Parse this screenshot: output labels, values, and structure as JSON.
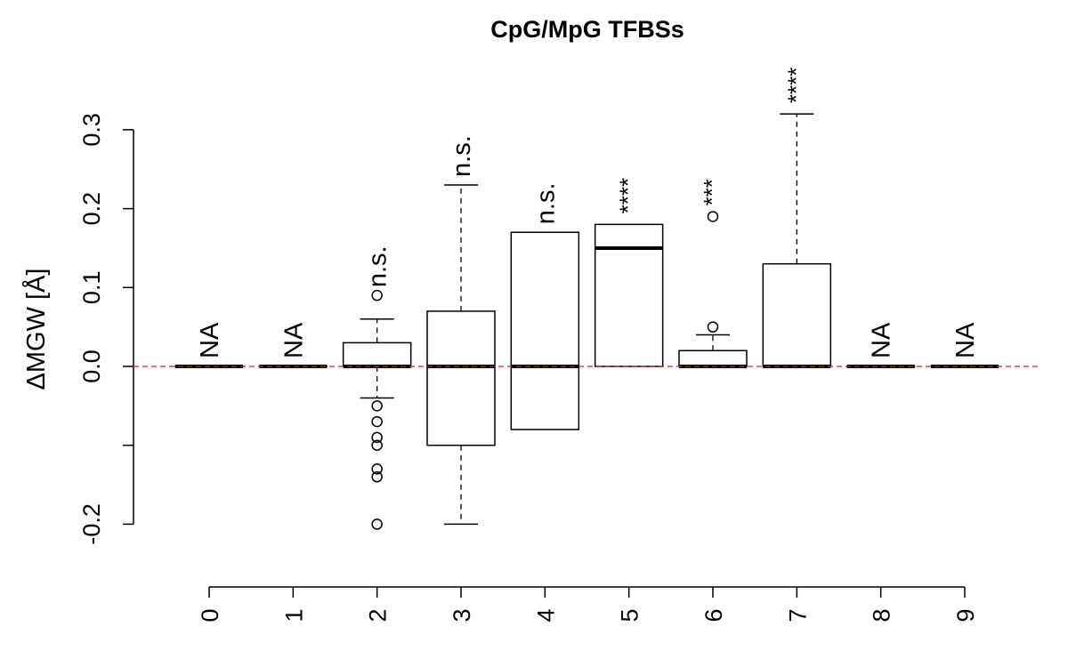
{
  "chart_data": {
    "type": "boxplot",
    "title": "CpG/MpG TFBSs",
    "xlabel": "",
    "ylabel": "ΔMGW [Å]",
    "ylim": [
      -0.2,
      0.3
    ],
    "yticks": [
      -0.2,
      -0.1,
      0.0,
      0.1,
      0.2,
      0.3
    ],
    "ytick_labels": [
      "-0.2",
      "",
      "0.0",
      "0.1",
      "0.2",
      "0.3"
    ],
    "categories": [
      "0",
      "1",
      "2",
      "3",
      "4",
      "5",
      "6",
      "7",
      "8",
      "9"
    ],
    "reference_line": {
      "y": 0,
      "color": "#e31a1c",
      "style": "dashed"
    },
    "boxes": [
      {
        "q1": 0,
        "median": 0,
        "q3": 0,
        "whisker_low": 0,
        "whisker_high": 0,
        "outliers": [],
        "annotation": "NA"
      },
      {
        "q1": 0,
        "median": 0,
        "q3": 0,
        "whisker_low": 0,
        "whisker_high": 0,
        "outliers": [],
        "annotation": "NA"
      },
      {
        "q1": 0,
        "median": 0,
        "q3": 0.03,
        "whisker_low": -0.04,
        "whisker_high": 0.06,
        "outliers": [
          0.09,
          -0.05,
          -0.07,
          -0.09,
          -0.1,
          -0.13,
          -0.14,
          -0.2
        ],
        "annotation": "n.s."
      },
      {
        "q1": -0.1,
        "median": 0,
        "q3": 0.07,
        "whisker_low": -0.2,
        "whisker_high": 0.23,
        "outliers": [],
        "annotation": "n.s."
      },
      {
        "q1": -0.08,
        "median": 0,
        "q3": 0.17,
        "whisker_low": -0.08,
        "whisker_high": 0.17,
        "outliers": [],
        "annotation": "n.s."
      },
      {
        "q1": 0,
        "median": 0.15,
        "q3": 0.18,
        "whisker_low": 0,
        "whisker_high": 0.18,
        "outliers": [],
        "annotation": "****"
      },
      {
        "q1": 0,
        "median": 0,
        "q3": 0.02,
        "whisker_low": 0,
        "whisker_high": 0.04,
        "outliers": [
          0.05,
          0.19
        ],
        "annotation": "***"
      },
      {
        "q1": 0,
        "median": 0,
        "q3": 0.13,
        "whisker_low": 0,
        "whisker_high": 0.32,
        "outliers": [],
        "annotation": "****"
      },
      {
        "q1": 0,
        "median": 0,
        "q3": 0,
        "whisker_low": 0,
        "whisker_high": 0,
        "outliers": [],
        "annotation": "NA"
      },
      {
        "q1": 0,
        "median": 0,
        "q3": 0,
        "whisker_low": 0,
        "whisker_high": 0,
        "outliers": [],
        "annotation": "NA"
      }
    ]
  }
}
